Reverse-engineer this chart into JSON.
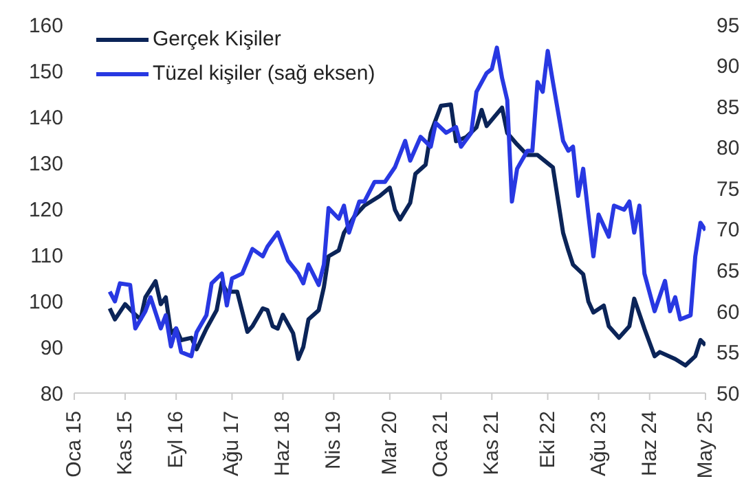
{
  "chart_data": {
    "type": "line",
    "xlim": [
      "2015-01",
      "2025-05"
    ],
    "xticks": [
      {
        "value": "2015-01",
        "label": "Oca 15"
      },
      {
        "value": "2015-11",
        "label": "Kas 15"
      },
      {
        "value": "2016-09",
        "label": "Eyl 16"
      },
      {
        "value": "2017-08",
        "label": "Ağu 17"
      },
      {
        "value": "2018-06",
        "label": "Haz 18"
      },
      {
        "value": "2019-04",
        "label": "Nis 19"
      },
      {
        "value": "2020-03",
        "label": "Mar 20"
      },
      {
        "value": "2021-01",
        "label": "Oca 21"
      },
      {
        "value": "2021-11",
        "label": "Kas 21"
      },
      {
        "value": "2022-10",
        "label": "Eki 22"
      },
      {
        "value": "2023-08",
        "label": "Ağu 23"
      },
      {
        "value": "2024-06",
        "label": "Haz 24"
      },
      {
        "value": "2025-05",
        "label": "May 25"
      }
    ],
    "ylim": [
      80,
      160
    ],
    "yticks": [
      80,
      90,
      100,
      110,
      120,
      130,
      140,
      150,
      160
    ],
    "y2lim": [
      50,
      95
    ],
    "y2ticks": [
      50,
      55,
      60,
      65,
      70,
      75,
      80,
      85,
      90,
      95
    ],
    "grid": false,
    "legend": "top left",
    "marker": "none",
    "line_style": "solid",
    "series": [
      {
        "name": "Gerçek Kişiler",
        "color": "#0b2458",
        "x": [
          "2015-08",
          "2015-09",
          "2015-11",
          "2016-01",
          "2016-02",
          "2016-03",
          "2016-05",
          "2016-06",
          "2016-07",
          "2016-08",
          "2016-09",
          "2016-10",
          "2016-12",
          "2017-01",
          "2017-03",
          "2017-05",
          "2017-06",
          "2017-07",
          "2017-09",
          "2017-11",
          "2017-12",
          "2018-02",
          "2018-03",
          "2018-04",
          "2018-05",
          "2018-06",
          "2018-08",
          "2018-09",
          "2018-10",
          "2018-11",
          "2019-01",
          "2019-02",
          "2019-03",
          "2019-05",
          "2019-06",
          "2019-08",
          "2019-10",
          "2020-01",
          "2020-03",
          "2020-04",
          "2020-05",
          "2020-07",
          "2020-08",
          "2020-10",
          "2020-11",
          "2021-01",
          "2021-03",
          "2021-04",
          "2021-06",
          "2021-08",
          "2021-09",
          "2021-10",
          "2022-01",
          "2022-02",
          "2022-04",
          "2022-06",
          "2022-08",
          "2022-11",
          "2023-01",
          "2023-02",
          "2023-03",
          "2023-05",
          "2023-06",
          "2023-07",
          "2023-09",
          "2023-10",
          "2023-12",
          "2024-02",
          "2024-03",
          "2024-05",
          "2024-07",
          "2024-08",
          "2024-11",
          "2025-01",
          "2025-03",
          "2025-04",
          "2025-05"
        ],
        "values": [
          98.4,
          96,
          99.3,
          97,
          96,
          100.8,
          104.3,
          99.3,
          100.8,
          93,
          94,
          91.5,
          92,
          89.5,
          94,
          98,
          104,
          102,
          102,
          93.3,
          94.5,
          98.4,
          98,
          94.5,
          94,
          97,
          93,
          87.4,
          90,
          96,
          98,
          103,
          109.7,
          111,
          114.8,
          118.3,
          120.7,
          122.8,
          124.6,
          119.8,
          117.7,
          121.3,
          127.6,
          129.6,
          136.5,
          142.4,
          142.7,
          134.7,
          135.6,
          137.7,
          141.5,
          138,
          142,
          136.5,
          134,
          131.7,
          131.7,
          129,
          114.8,
          111,
          107.9,
          105.8,
          99.9,
          97.5,
          99,
          94.5,
          92,
          94.5,
          100.5,
          94,
          88,
          88.9,
          87.4,
          86,
          88,
          91.5,
          90.4
        ]
      },
      {
        "name": "Tüzel kişiler (sağ eksen)",
        "color": "#2838e2",
        "axis": "y2",
        "x": [
          "2015-08",
          "2015-09",
          "2015-10",
          "2015-12",
          "2016-01",
          "2016-03",
          "2016-04",
          "2016-06",
          "2016-07",
          "2016-08",
          "2016-09",
          "2016-10",
          "2016-12",
          "2017-01",
          "2017-03",
          "2017-04",
          "2017-06",
          "2017-07",
          "2017-08",
          "2017-10",
          "2017-12",
          "2018-02",
          "2018-03",
          "2018-05",
          "2018-07",
          "2018-09",
          "2018-10",
          "2018-11",
          "2019-01",
          "2019-02",
          "2019-03",
          "2019-05",
          "2019-06",
          "2019-07",
          "2019-09",
          "2019-10",
          "2019-12",
          "2020-02",
          "2020-04",
          "2020-06",
          "2020-07",
          "2020-09",
          "2020-11",
          "2020-12",
          "2021-02",
          "2021-04",
          "2021-05",
          "2021-07",
          "2021-08",
          "2021-10",
          "2021-11",
          "2021-12",
          "2022-01",
          "2022-02",
          "2022-03",
          "2022-04",
          "2022-06",
          "2022-07",
          "2022-08",
          "2022-09",
          "2022-10",
          "2022-11",
          "2023-01",
          "2023-02",
          "2023-03",
          "2023-04",
          "2023-05",
          "2023-06",
          "2023-07",
          "2023-08",
          "2023-10",
          "2023-11",
          "2024-01",
          "2024-02",
          "2024-03",
          "2024-04",
          "2024-05",
          "2024-07",
          "2024-09",
          "2024-10",
          "2024-11",
          "2024-12",
          "2025-02",
          "2025-03",
          "2025-04",
          "2025-05"
        ],
        "values": [
          62.4,
          61.2,
          63.4,
          63.2,
          57.9,
          60,
          61.7,
          57.9,
          59.5,
          55.7,
          57.9,
          55,
          54.5,
          57.4,
          59.5,
          63.4,
          64.6,
          60.7,
          64,
          64.6,
          67.6,
          66.7,
          67.9,
          69.6,
          66.2,
          64.6,
          63.4,
          65.7,
          63.2,
          65.7,
          72.6,
          71.3,
          72.9,
          69.6,
          73.4,
          73.4,
          75.8,
          75.8,
          77.6,
          80.8,
          78.4,
          81.3,
          80.1,
          83,
          81.8,
          82.5,
          80.1,
          81.8,
          86.8,
          89.1,
          89.6,
          92.2,
          88.5,
          85.8,
          73.4,
          77.4,
          79.6,
          79.6,
          88,
          86.8,
          91.8,
          88,
          80.8,
          79.6,
          80.1,
          74.1,
          77.4,
          71.8,
          66.7,
          71.8,
          69.1,
          72.9,
          72.4,
          73.4,
          69.6,
          72.9,
          64.6,
          60,
          63.7,
          60,
          61.7,
          59,
          59.5,
          66.7,
          70.8,
          69.9
        ]
      }
    ]
  }
}
